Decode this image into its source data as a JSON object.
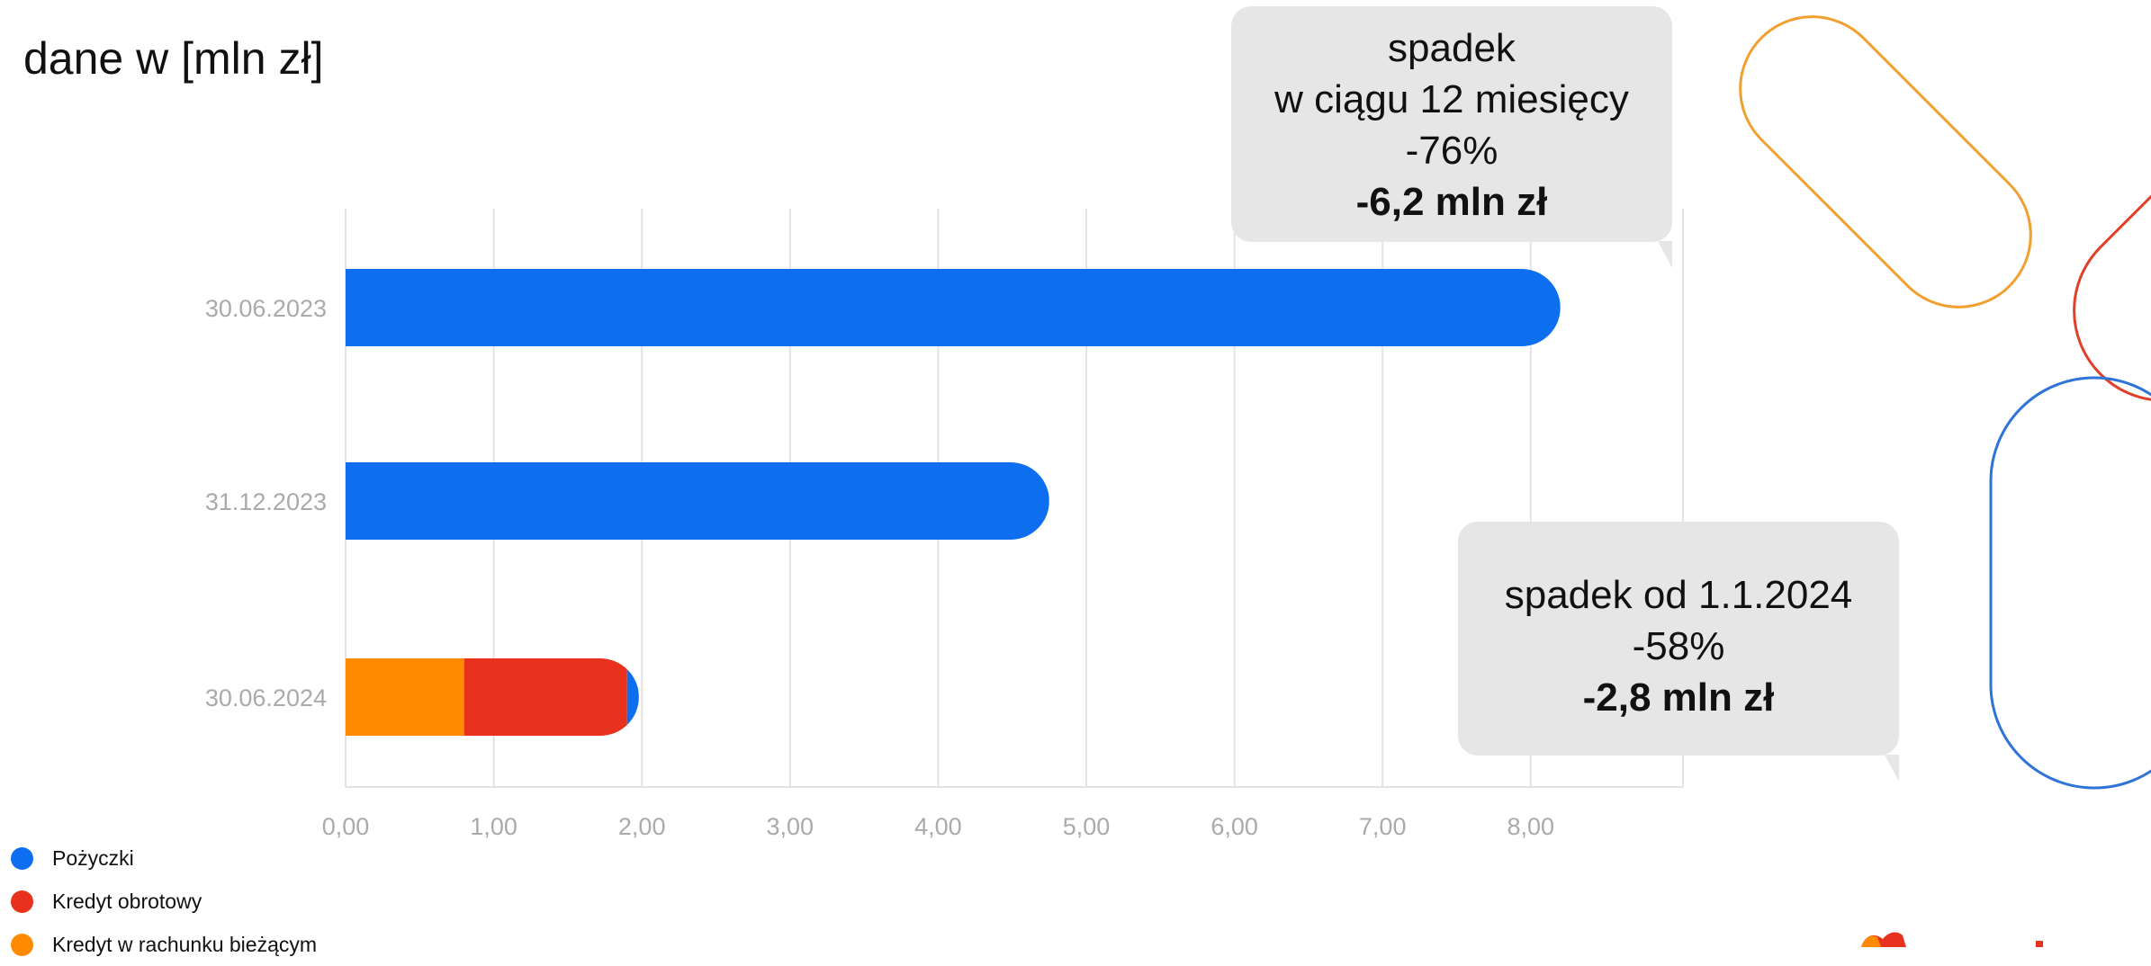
{
  "units_title": "dane w [mln zł]",
  "colors": {
    "pozyczki": "#0d6ef0",
    "kredyt_obrotowy": "#e8321e",
    "kredyt_rachunek": "#ff8a00",
    "grid": "#e3e3e3",
    "tick_text": "#aaaaaa",
    "callout_bg": "#e6e6e6",
    "deco_orange": "#f0a030",
    "deco_red": "#e0402a",
    "deco_blue": "#2e74d8"
  },
  "callouts": [
    {
      "lines": [
        "spadek",
        "w ciągu 12 miesięcy",
        "-76%"
      ],
      "bold": "-6,2 mln zł"
    },
    {
      "lines": [
        "spadek od 1.1.2024",
        "-58%"
      ],
      "bold": "-2,8 mln zł"
    }
  ],
  "legend": [
    {
      "label": "Pożyczki",
      "color": "#0d6ef0"
    },
    {
      "label": "Kredyt obrotowy",
      "color": "#e8321e"
    },
    {
      "label": "Kredyt w rachunku bieżącym",
      "color": "#ff8a00"
    }
  ],
  "chart_data": {
    "type": "bar",
    "orientation": "horizontal",
    "stacked": true,
    "categories": [
      "30.06.2023",
      "31.12.2023",
      "30.06.2024"
    ],
    "series": [
      {
        "name": "Kredyt w rachunku bieżącym",
        "color": "#ff8a00",
        "values": [
          0,
          0,
          0.8
        ]
      },
      {
        "name": "Kredyt obrotowy",
        "color": "#e8321e",
        "values": [
          0,
          0,
          1.1
        ]
      },
      {
        "name": "Pożyczki",
        "color": "#0d6ef0",
        "values": [
          8.2,
          4.75,
          0.08
        ]
      }
    ],
    "x_ticks": [
      "0,00",
      "1,00",
      "2,00",
      "3,00",
      "4,00",
      "5,00",
      "6,00",
      "7,00",
      "8,00"
    ],
    "xlim": [
      0,
      9
    ],
    "grid": true,
    "legend_position": "bottom-left",
    "title": "",
    "xlabel": "",
    "ylabel": ""
  }
}
